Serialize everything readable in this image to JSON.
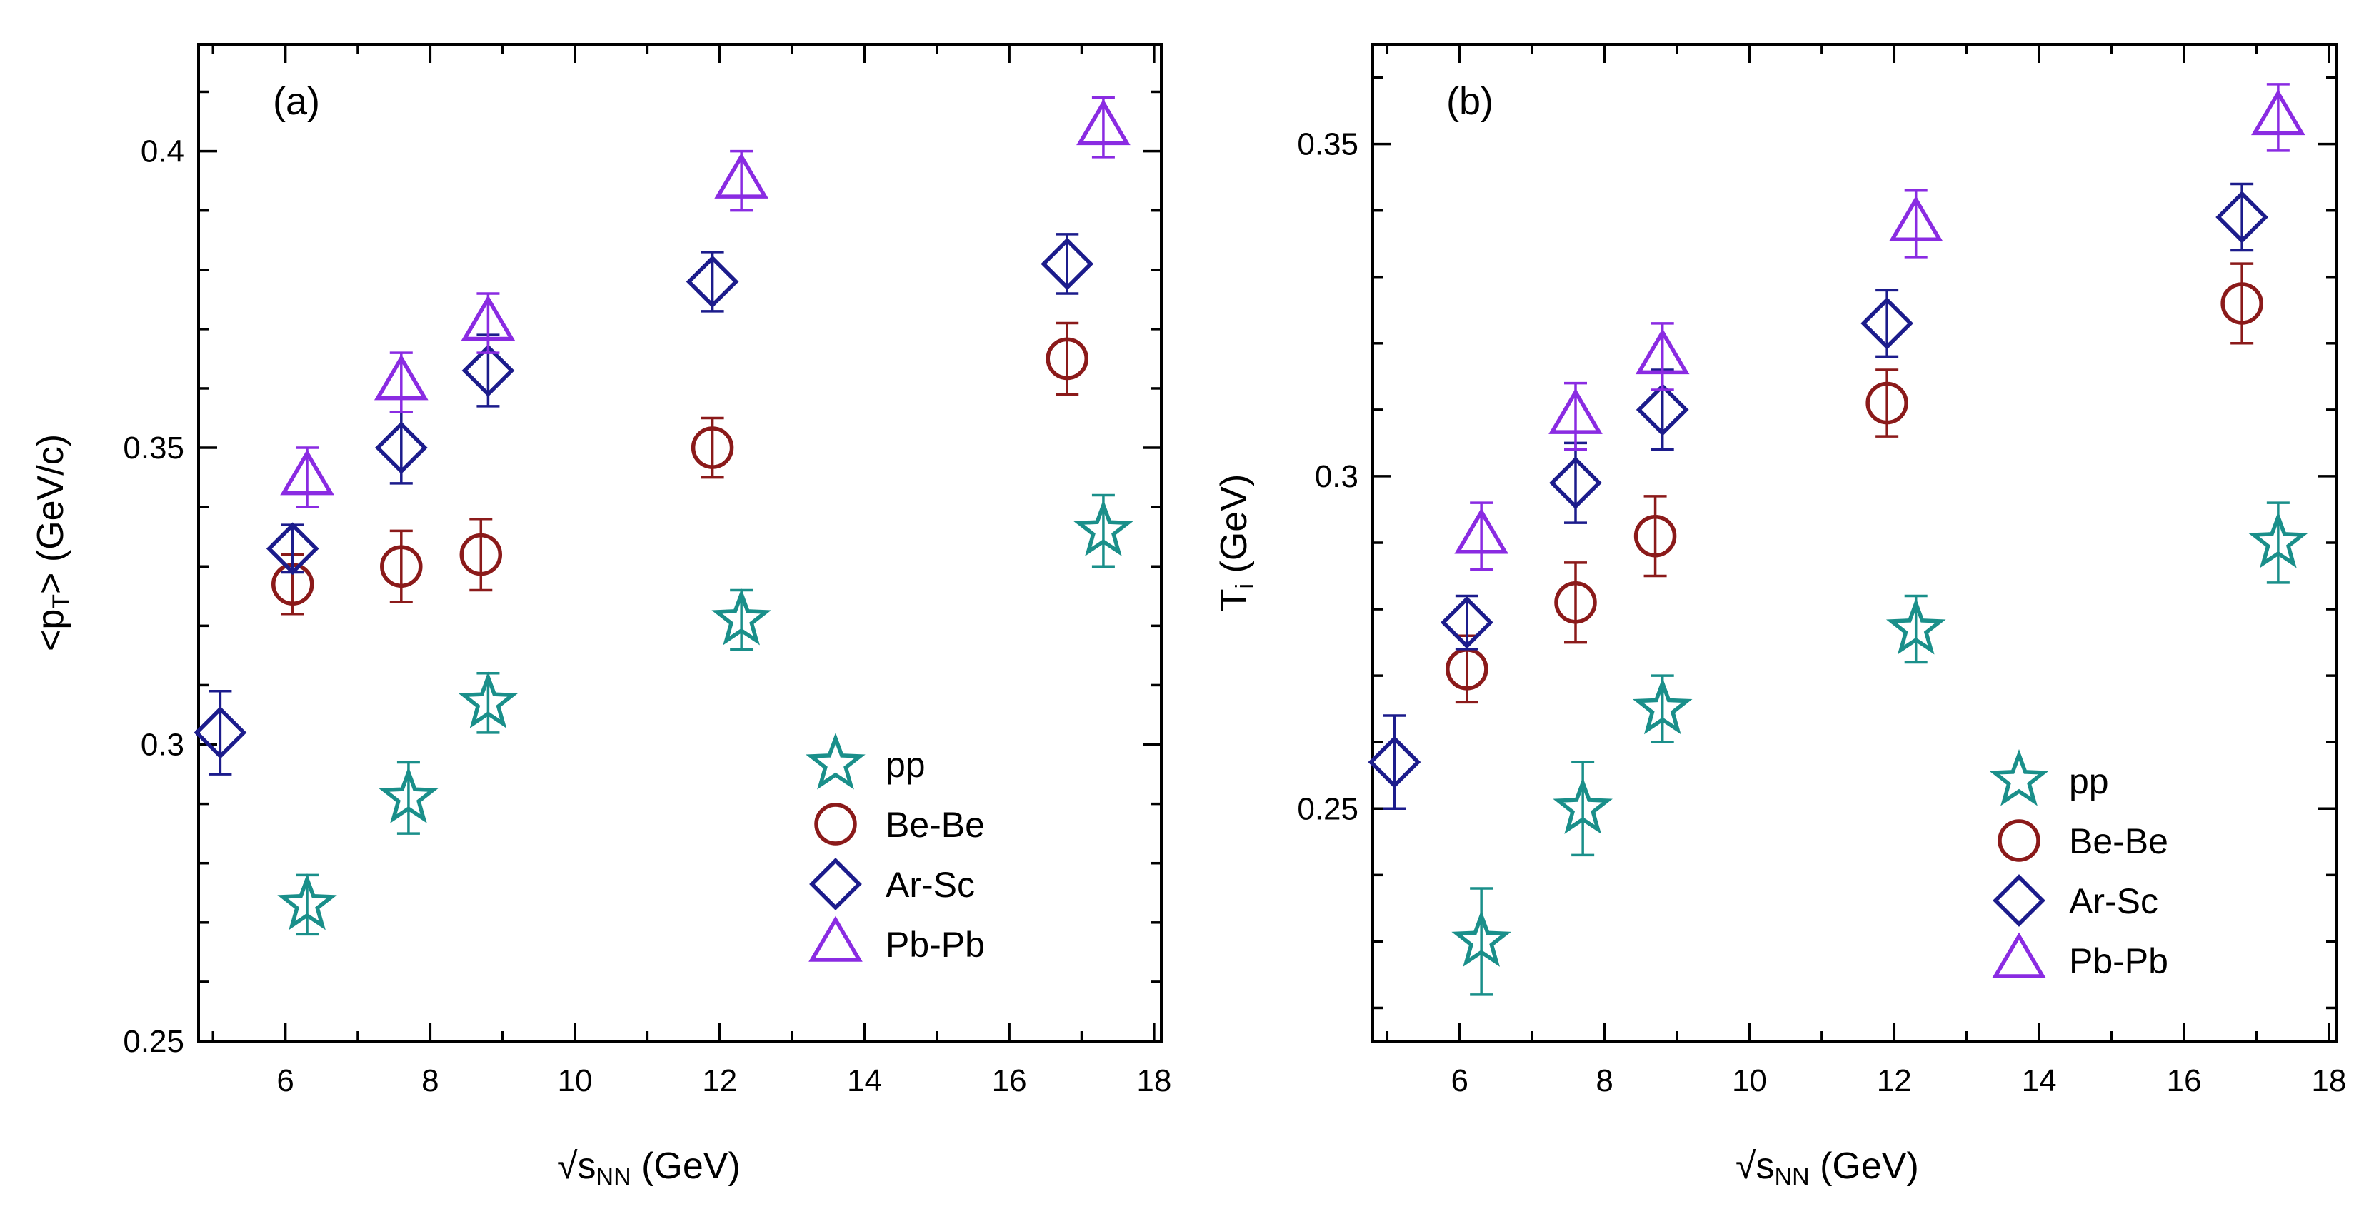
{
  "chart_data": [
    {
      "type": "scatter",
      "panel_label": "(a)",
      "xlabel": {
        "root": "√",
        "main": "s",
        "sub": "NN",
        "unit": " (GeV)"
      },
      "ylabel": {
        "pre": "<p",
        "sub": "T",
        "post": "> (GeV/c)"
      },
      "xlim": [
        4.8,
        18.1
      ],
      "ylim": [
        0.25,
        0.418
      ],
      "x_ticks": [
        6,
        8,
        10,
        12,
        14,
        16,
        18
      ],
      "x_tick_labels": [
        "6",
        "8",
        "10",
        "12",
        "14",
        "16",
        "18"
      ],
      "y_ticks": [
        0.25,
        0.3,
        0.35,
        0.4
      ],
      "y_tick_labels": [
        "0.25",
        "0.3",
        "0.35",
        "0.4"
      ],
      "legend_position": "bottom-right",
      "series": [
        {
          "name": "pp",
          "marker": "star",
          "color": "#1a8f8a",
          "x": [
            6.3,
            7.7,
            8.8,
            12.3,
            17.3
          ],
          "y": [
            0.273,
            0.291,
            0.307,
            0.321,
            0.336
          ],
          "err": [
            0.005,
            0.006,
            0.005,
            0.005,
            0.006
          ]
        },
        {
          "name": "Be-Be",
          "marker": "circle",
          "color": "#8b1a1a",
          "x": [
            6.1,
            7.6,
            8.7,
            11.9,
            16.8
          ],
          "y": [
            0.327,
            0.33,
            0.332,
            0.35,
            0.365
          ],
          "err": [
            0.005,
            0.006,
            0.006,
            0.005,
            0.006
          ]
        },
        {
          "name": "Ar-Sc",
          "marker": "diamond",
          "color": "#1c1c8c",
          "x": [
            5.1,
            6.1,
            7.6,
            8.8,
            11.9,
            16.8
          ],
          "y": [
            0.302,
            0.333,
            0.35,
            0.363,
            0.378,
            0.381
          ],
          "err": [
            0.007,
            0.004,
            0.006,
            0.006,
            0.005,
            0.005
          ]
        },
        {
          "name": "Pb-Pb",
          "marker": "triangle",
          "color": "#8a2be2",
          "x": [
            6.3,
            7.6,
            8.8,
            12.3,
            17.3
          ],
          "y": [
            0.345,
            0.361,
            0.371,
            0.395,
            0.404
          ],
          "err": [
            0.005,
            0.005,
            0.005,
            0.005,
            0.005
          ]
        }
      ]
    },
    {
      "type": "scatter",
      "panel_label": "(b)",
      "xlabel": {
        "root": "√",
        "main": "s",
        "sub": "NN",
        "unit": " (GeV)"
      },
      "ylabel": {
        "pre": "T",
        "sub": "i",
        "post": " (GeV)"
      },
      "xlim": [
        4.8,
        18.1
      ],
      "ylim": [
        0.215,
        0.365
      ],
      "x_ticks": [
        6,
        8,
        10,
        12,
        14,
        16,
        18
      ],
      "x_tick_labels": [
        "6",
        "8",
        "10",
        "12",
        "14",
        "16",
        "18"
      ],
      "y_ticks": [
        0.25,
        0.3,
        0.35
      ],
      "y_tick_labels": [
        "0.25",
        "0.3",
        "0.35"
      ],
      "legend_position": "bottom-right",
      "series": [
        {
          "name": "pp",
          "marker": "star",
          "color": "#1a8f8a",
          "x": [
            6.3,
            7.7,
            8.8,
            12.3,
            17.3
          ],
          "y": [
            0.23,
            0.25,
            0.265,
            0.277,
            0.29
          ],
          "err": [
            0.008,
            0.007,
            0.005,
            0.005,
            0.006
          ]
        },
        {
          "name": "Be-Be",
          "marker": "circle",
          "color": "#8b1a1a",
          "x": [
            6.1,
            7.6,
            8.7,
            11.9,
            16.8
          ],
          "y": [
            0.271,
            0.281,
            0.291,
            0.311,
            0.326
          ],
          "err": [
            0.005,
            0.006,
            0.006,
            0.005,
            0.006
          ]
        },
        {
          "name": "Ar-Sc",
          "marker": "diamond",
          "color": "#1c1c8c",
          "x": [
            5.1,
            6.1,
            7.6,
            8.8,
            11.9,
            16.8
          ],
          "y": [
            0.257,
            0.278,
            0.299,
            0.31,
            0.323,
            0.339
          ],
          "err": [
            0.007,
            0.004,
            0.006,
            0.006,
            0.005,
            0.005
          ]
        },
        {
          "name": "Pb-Pb",
          "marker": "triangle",
          "color": "#8a2be2",
          "x": [
            6.3,
            7.6,
            8.8,
            12.3,
            17.3
          ],
          "y": [
            0.291,
            0.309,
            0.318,
            0.338,
            0.354
          ],
          "err": [
            0.005,
            0.005,
            0.005,
            0.005,
            0.005
          ]
        }
      ]
    }
  ]
}
